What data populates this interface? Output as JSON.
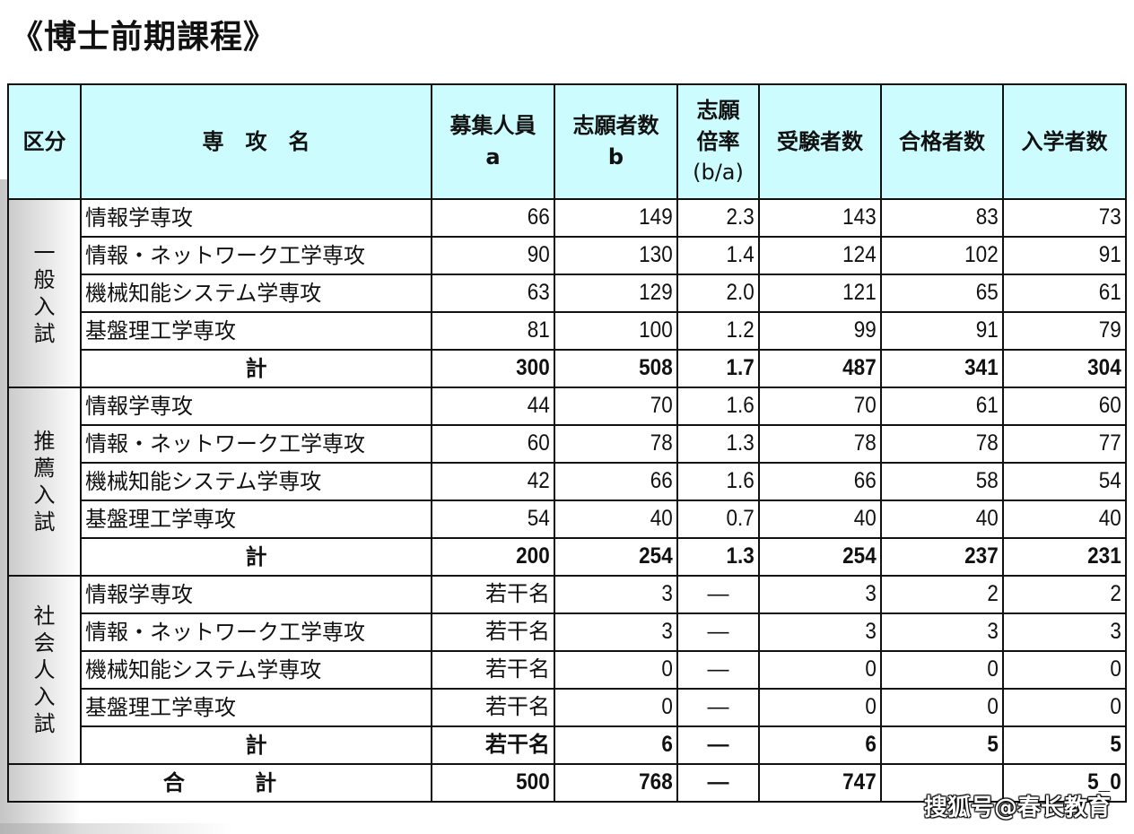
{
  "title": "《博士前期課程》",
  "colors": {
    "header_bg": "#ccfcfd",
    "border": "#111111",
    "text": "#111111"
  },
  "table": {
    "headers": {
      "category": "区分",
      "major": "専　攻　名",
      "quota_line1": "募集人員",
      "quota_line2": "a",
      "applicants_line1": "志願者数",
      "applicants_line2": "b",
      "ratio_line1": "志願",
      "ratio_line2": "倍率",
      "ratio_line3": "(b/a)",
      "examinees": "受験者数",
      "passed": "合格者数",
      "enrolled": "入学者数"
    },
    "groups": [
      {
        "category": "一般入試",
        "rows": [
          {
            "major": "情報学専攻",
            "quota": "66",
            "applicants": "149",
            "ratio": "2.3",
            "examinees": "143",
            "passed": "83",
            "enrolled": "73"
          },
          {
            "major": "情報・ネットワーク工学専攻",
            "quota": "90",
            "applicants": "130",
            "ratio": "1.4",
            "examinees": "124",
            "passed": "102",
            "enrolled": "91"
          },
          {
            "major": "機械知能システム学専攻",
            "quota": "63",
            "applicants": "129",
            "ratio": "2.0",
            "examinees": "121",
            "passed": "65",
            "enrolled": "61"
          },
          {
            "major": "基盤理工学専攻",
            "quota": "81",
            "applicants": "100",
            "ratio": "1.2",
            "examinees": "99",
            "passed": "91",
            "enrolled": "79"
          }
        ],
        "subtotal": {
          "label": "計",
          "quota": "300",
          "applicants": "508",
          "ratio": "1.7",
          "examinees": "487",
          "passed": "341",
          "enrolled": "304"
        }
      },
      {
        "category": "推薦入試",
        "rows": [
          {
            "major": "情報学専攻",
            "quota": "44",
            "applicants": "70",
            "ratio": "1.6",
            "examinees": "70",
            "passed": "61",
            "enrolled": "60"
          },
          {
            "major": "情報・ネットワーク工学専攻",
            "quota": "60",
            "applicants": "78",
            "ratio": "1.3",
            "examinees": "78",
            "passed": "78",
            "enrolled": "77"
          },
          {
            "major": "機械知能システム学専攻",
            "quota": "42",
            "applicants": "66",
            "ratio": "1.6",
            "examinees": "66",
            "passed": "58",
            "enrolled": "54"
          },
          {
            "major": "基盤理工学専攻",
            "quota": "54",
            "applicants": "40",
            "ratio": "0.7",
            "examinees": "40",
            "passed": "40",
            "enrolled": "40"
          }
        ],
        "subtotal": {
          "label": "計",
          "quota": "200",
          "applicants": "254",
          "ratio": "1.3",
          "examinees": "254",
          "passed": "237",
          "enrolled": "231"
        }
      },
      {
        "category": "社会人入試",
        "rows": [
          {
            "major": "情報学専攻",
            "quota": "若干名",
            "applicants": "3",
            "ratio": "—",
            "examinees": "3",
            "passed": "2",
            "enrolled": "2"
          },
          {
            "major": "情報・ネットワーク工学専攻",
            "quota": "若干名",
            "applicants": "3",
            "ratio": "—",
            "examinees": "3",
            "passed": "3",
            "enrolled": "3"
          },
          {
            "major": "機械知能システム学専攻",
            "quota": "若干名",
            "applicants": "0",
            "ratio": "—",
            "examinees": "0",
            "passed": "0",
            "enrolled": "0"
          },
          {
            "major": "基盤理工学専攻",
            "quota": "若干名",
            "applicants": "0",
            "ratio": "—",
            "examinees": "0",
            "passed": "0",
            "enrolled": "0"
          }
        ],
        "subtotal": {
          "label": "計",
          "quota": "若干名",
          "applicants": "6",
          "ratio": "—",
          "examinees": "6",
          "passed": "5",
          "enrolled": "5"
        }
      }
    ],
    "grand_total": {
      "label": "合 計",
      "quota": "500",
      "applicants": "768",
      "ratio": "—",
      "examinees": "747",
      "passed": "",
      "enrolled": "5_0"
    }
  },
  "watermark": "搜狐号@春长教育"
}
